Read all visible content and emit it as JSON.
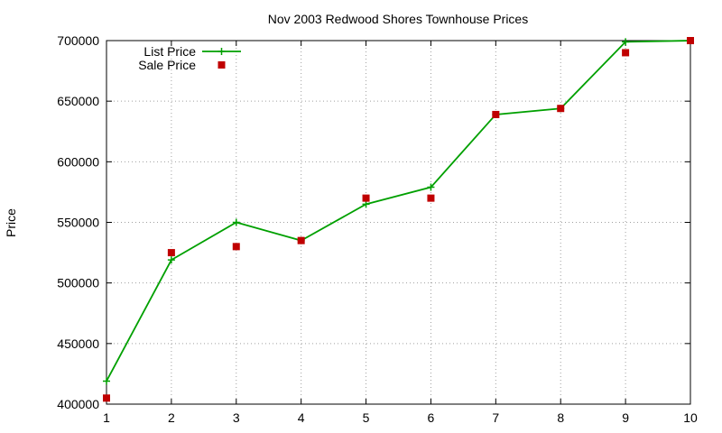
{
  "chart_data": {
    "type": "line",
    "title": "Nov 2003 Redwood Shores Townhouse Prices",
    "xlabel": "",
    "ylabel": "Price",
    "xlim": [
      1,
      10
    ],
    "ylim": [
      400000,
      700000
    ],
    "x_ticks": [
      1,
      2,
      3,
      4,
      5,
      6,
      7,
      8,
      9,
      10
    ],
    "y_ticks": [
      400000,
      450000,
      500000,
      550000,
      600000,
      650000,
      700000
    ],
    "grid": true,
    "legend_position": "top-left",
    "series": [
      {
        "name": "List Price",
        "style": "line-with-plus-markers",
        "color": "#00a000",
        "x": [
          1,
          2,
          3,
          4,
          5,
          6,
          7,
          8,
          9,
          10
        ],
        "y": [
          419000,
          519000,
          550000,
          535000,
          565000,
          579000,
          639000,
          644000,
          699000,
          700000
        ]
      },
      {
        "name": "Sale Price",
        "style": "square-markers",
        "color": "#c00000",
        "x": [
          1,
          2,
          3,
          4,
          5,
          6,
          7,
          8,
          9,
          10
        ],
        "y": [
          405000,
          525000,
          530000,
          535000,
          570000,
          570000,
          639000,
          644000,
          690000,
          700000
        ]
      }
    ]
  }
}
